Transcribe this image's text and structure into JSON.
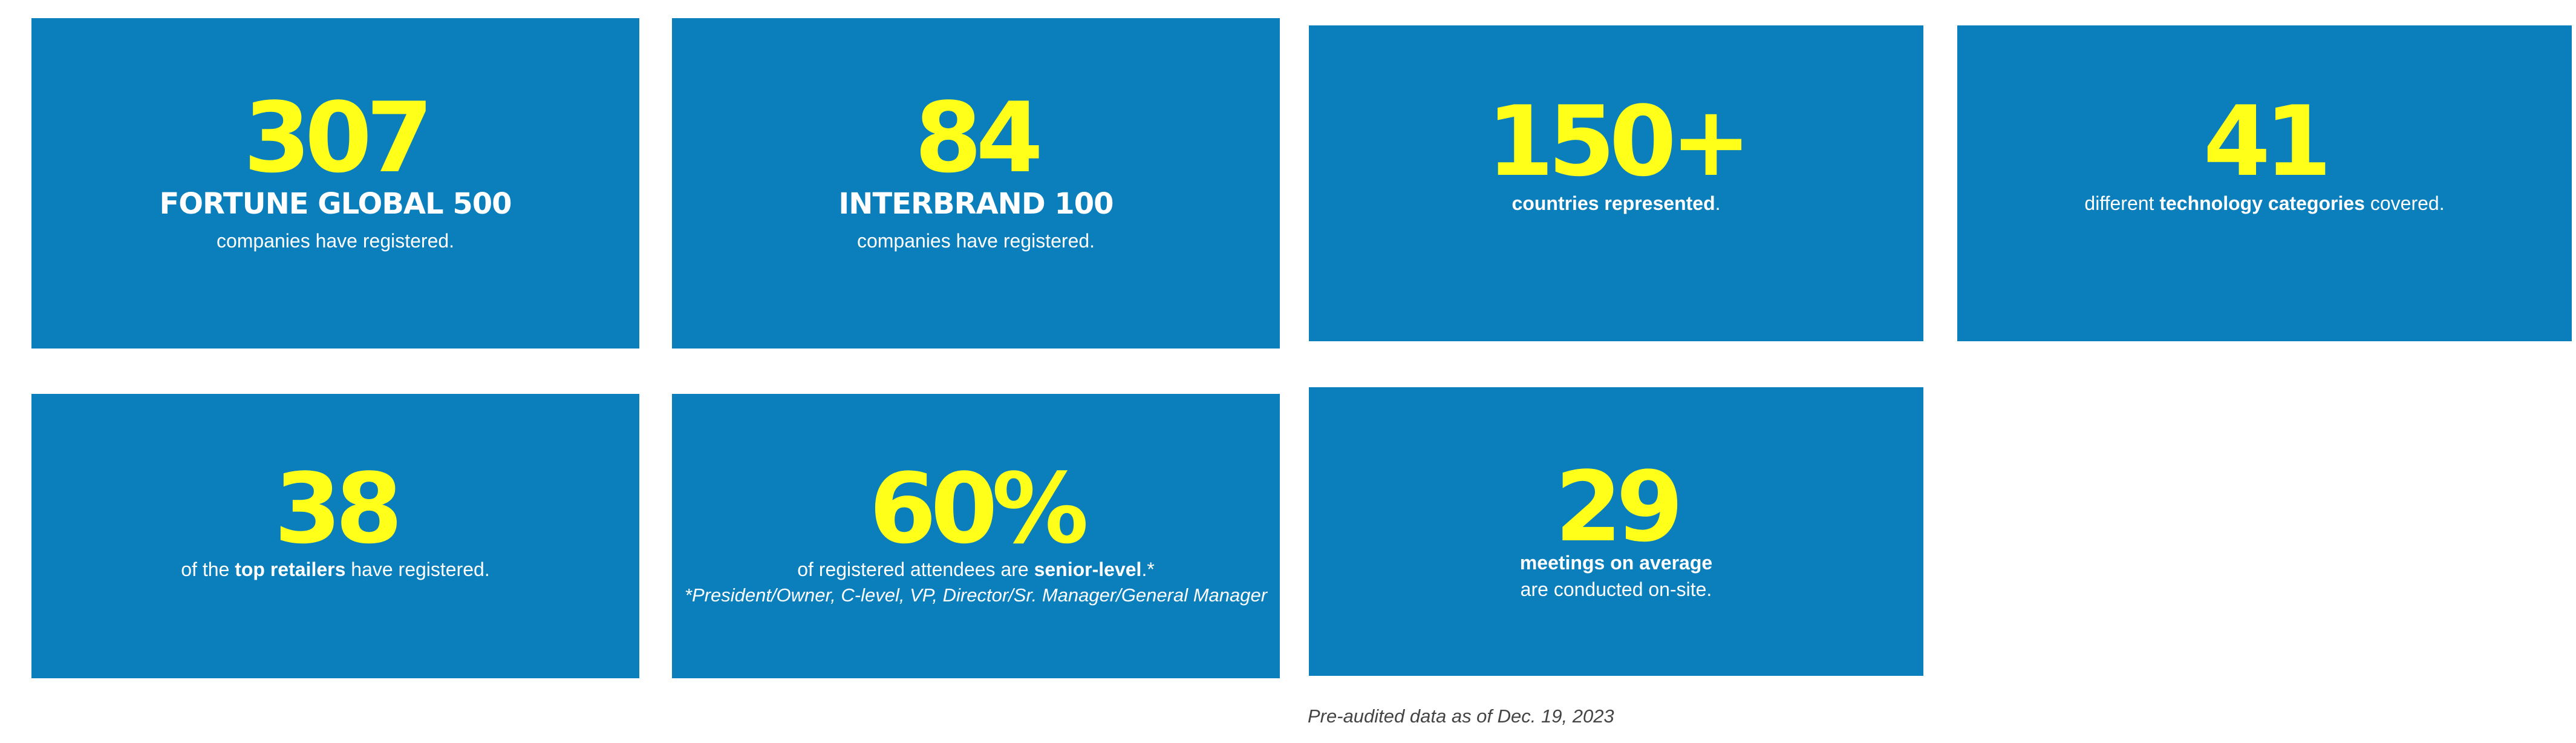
{
  "colors": {
    "card_bg": "#0a7fbc",
    "number": "#ffff1a",
    "text": "#ffffff"
  },
  "stats": [
    {
      "number": "307",
      "heading": "FORTUNE GLOBAL 500",
      "line1": "companies have registered."
    },
    {
      "number": "84",
      "heading": "INTERBRAND 100",
      "line1": "companies have registered."
    },
    {
      "number": "150+",
      "bold1": "countries represented",
      "after1": "."
    },
    {
      "number": "41",
      "before1": "different ",
      "bold1": "technology categories",
      "after1": " covered."
    },
    {
      "number": "38",
      "before1": "of the ",
      "bold1": "top retailers",
      "after1": " have registered."
    },
    {
      "number": "60%",
      "before1": "of registered attendees are ",
      "bold1": "senior-level",
      "after1": ".*",
      "note": "*President/Owner, C-level, VP, Director/Sr. Manager/General Manager"
    },
    {
      "number": "29",
      "bold1": "meetings on average",
      "line2": "are conducted on-site."
    }
  ],
  "footnote": "Pre-audited data as of Dec. 19, 2023"
}
